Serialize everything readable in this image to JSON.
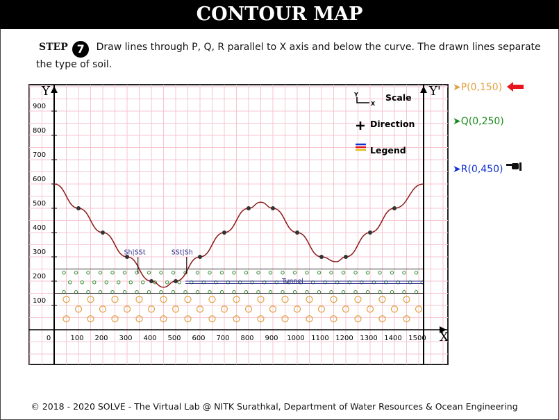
{
  "title": "CONTOUR MAP",
  "step": {
    "label": "STEP",
    "number": "7",
    "instruction": "Draw lines through P, Q, R parallel to X axis and below the curve. The drawn lines separate the type of soil."
  },
  "chart_data": {
    "type": "line",
    "x_ticks": [
      "0",
      "100",
      "200",
      "300",
      "400",
      "500",
      "600",
      "700",
      "800",
      "900",
      "1000",
      "1100",
      "1200",
      "1300",
      "1400",
      "1500"
    ],
    "y_ticks": [
      "100",
      "200",
      "300",
      "400",
      "500",
      "600",
      "700",
      "800",
      "900"
    ],
    "xlim": [
      0,
      1620
    ],
    "ylim": [
      -90,
      1020
    ],
    "axis_label_y": "Y",
    "axis_label_y2": "Y'",
    "axis_label_x": "X",
    "profile": {
      "x": [
        0,
        100,
        200,
        300,
        400,
        500,
        600,
        700,
        800,
        900,
        1000,
        1100,
        1200,
        1300,
        1400,
        1520
      ],
      "y": [
        600,
        500,
        400,
        300,
        200,
        200,
        300,
        400,
        500,
        500,
        400,
        300,
        300,
        400,
        500,
        600
      ]
    },
    "dips": [
      {
        "x": 450,
        "y": 175
      },
      {
        "x": 1160,
        "y": 280
      },
      {
        "x": 850,
        "y": 525
      }
    ],
    "soil_lines": [
      150,
      250
    ],
    "tunnel_y": [
      200,
      190
    ],
    "annotations": [
      {
        "text": "Sh|SSt",
        "x": 350,
        "y": 310
      },
      {
        "text": "SSt|Sh",
        "x": 545,
        "y": 310
      },
      {
        "text": "Tunnel",
        "x": 1000,
        "y": 192
      }
    ],
    "toolbox": {
      "scale_label": "Scale",
      "direction_label": "Direction",
      "legend_label": "Legend",
      "scale_axis_y": "Y",
      "scale_axis_x": "X"
    },
    "colors": {
      "grid": "#f4c6d0",
      "curve": "#8b1a1a",
      "point": "#333333",
      "green_soil": "#2e8b2e",
      "orange_soil": "#e0a040",
      "tunnel": "#2e2e8b"
    }
  },
  "points": {
    "p": {
      "text": "➤P(0,150)",
      "color": "#e0a040"
    },
    "q": {
      "text": "➤Q(0,250)",
      "color": "#1a8a1a"
    },
    "r": {
      "text": "➤R(0,450)",
      "color": "#1030d0"
    }
  },
  "footer": "© 2018 - 2020 SOLVE - The Virtual Lab @ NITK Surathkal, Department of Water Resources & Ocean Engineering"
}
